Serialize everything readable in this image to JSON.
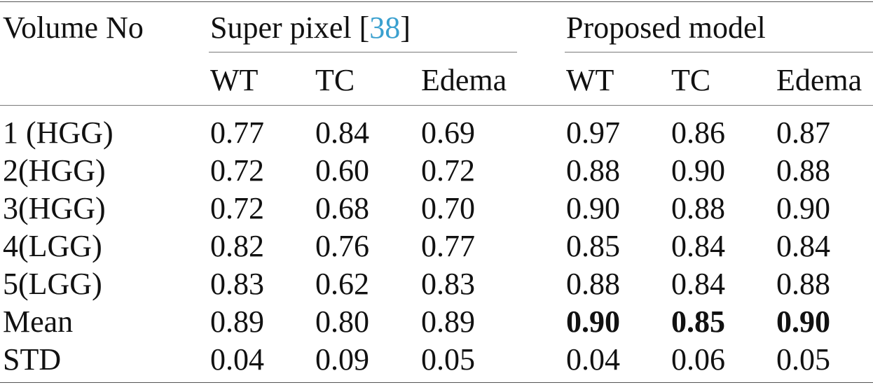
{
  "table": {
    "header": {
      "volume_label": "Volume No",
      "group1": {
        "prefix": "Super pixel [",
        "citation": "38",
        "suffix": "]"
      },
      "group2": "Proposed model",
      "subcolumns": [
        "WT",
        "TC",
        "Edema",
        "WT",
        "TC",
        "Edema"
      ]
    },
    "rows": [
      {
        "label": "1 (HGG)",
        "values": [
          "0.77",
          "0.84",
          "0.69",
          "0.97",
          "0.86",
          "0.87"
        ],
        "bold": [
          false,
          false,
          false,
          false,
          false,
          false
        ]
      },
      {
        "label": "2(HGG)",
        "values": [
          "0.72",
          "0.60",
          "0.72",
          "0.88",
          "0.90",
          "0.88"
        ],
        "bold": [
          false,
          false,
          false,
          false,
          false,
          false
        ]
      },
      {
        "label": "3(HGG)",
        "values": [
          "0.72",
          "0.68",
          "0.70",
          "0.90",
          "0.88",
          "0.90"
        ],
        "bold": [
          false,
          false,
          false,
          false,
          false,
          false
        ]
      },
      {
        "label": "4(LGG)",
        "values": [
          "0.82",
          "0.76",
          "0.77",
          "0.85",
          "0.84",
          "0.84"
        ],
        "bold": [
          false,
          false,
          false,
          false,
          false,
          false
        ]
      },
      {
        "label": "5(LGG)",
        "values": [
          "0.83",
          "0.62",
          "0.83",
          "0.88",
          "0.84",
          "0.88"
        ],
        "bold": [
          false,
          false,
          false,
          false,
          false,
          false
        ]
      },
      {
        "label": "Mean",
        "values": [
          "0.89",
          "0.80",
          "0.89",
          "0.90",
          "0.85",
          "0.90"
        ],
        "bold": [
          false,
          false,
          false,
          true,
          true,
          true
        ]
      },
      {
        "label": "STD",
        "values": [
          "0.04",
          "0.09",
          "0.05",
          "0.04",
          "0.06",
          "0.05"
        ],
        "bold": [
          false,
          false,
          false,
          false,
          false,
          false
        ]
      }
    ]
  },
  "colors": {
    "text": "#111111",
    "citation_link": "#3aa0cf",
    "rules": "#555555"
  }
}
